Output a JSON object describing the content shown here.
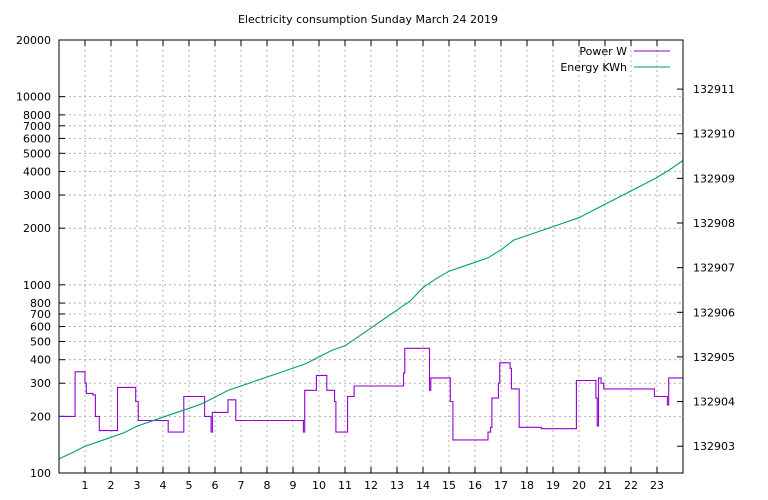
{
  "chart_data": {
    "type": "line",
    "title": "Electricity consumption Sunday March 24 2019",
    "xlabel": "",
    "ylabel": "",
    "x_range": [
      0,
      24
    ],
    "x_ticks": [
      1,
      2,
      3,
      4,
      5,
      6,
      7,
      8,
      9,
      10,
      11,
      12,
      13,
      14,
      15,
      16,
      17,
      18,
      19,
      20,
      21,
      22,
      23
    ],
    "y_scale": "log",
    "y_range": [
      100,
      20000
    ],
    "y_ticks": [
      100,
      200,
      300,
      400,
      500,
      600,
      700,
      800,
      1000,
      2000,
      3000,
      4000,
      5000,
      6000,
      7000,
      8000,
      10000,
      20000
    ],
    "y2_range": [
      132902.4,
      132912.1
    ],
    "y2_ticks": [
      132903,
      132904,
      132905,
      132906,
      132907,
      132908,
      132909,
      132910,
      132911
    ],
    "grid": true,
    "legend_position": "top-right",
    "series": [
      {
        "name": "Power W",
        "axis": "left",
        "color": "#9400d3",
        "step": true,
        "points": [
          [
            0.0,
            200
          ],
          [
            0.55,
            200
          ],
          [
            0.62,
            345
          ],
          [
            0.98,
            345
          ],
          [
            1.0,
            300
          ],
          [
            1.05,
            265
          ],
          [
            1.3,
            260
          ],
          [
            1.4,
            200
          ],
          [
            1.55,
            168
          ],
          [
            2.15,
            168
          ],
          [
            2.25,
            285
          ],
          [
            2.9,
            285
          ],
          [
            2.95,
            240
          ],
          [
            3.05,
            190
          ],
          [
            4.15,
            190
          ],
          [
            4.2,
            165
          ],
          [
            4.75,
            165
          ],
          [
            4.8,
            255
          ],
          [
            5.55,
            255
          ],
          [
            5.6,
            200
          ],
          [
            5.85,
            165
          ],
          [
            5.9,
            210
          ],
          [
            6.4,
            210
          ],
          [
            6.5,
            245
          ],
          [
            6.7,
            245
          ],
          [
            6.8,
            190
          ],
          [
            9.35,
            190
          ],
          [
            9.4,
            165
          ],
          [
            9.45,
            275
          ],
          [
            9.85,
            275
          ],
          [
            9.9,
            330
          ],
          [
            10.2,
            330
          ],
          [
            10.3,
            275
          ],
          [
            10.5,
            275
          ],
          [
            10.6,
            240
          ],
          [
            10.65,
            165
          ],
          [
            11.05,
            165
          ],
          [
            11.1,
            255
          ],
          [
            11.3,
            255
          ],
          [
            11.35,
            290
          ],
          [
            13.2,
            290
          ],
          [
            13.25,
            340
          ],
          [
            13.3,
            460
          ],
          [
            14.2,
            460
          ],
          [
            14.25,
            275
          ],
          [
            14.3,
            320
          ],
          [
            15.0,
            320
          ],
          [
            15.05,
            240
          ],
          [
            15.15,
            150
          ],
          [
            16.45,
            150
          ],
          [
            16.5,
            165
          ],
          [
            16.6,
            175
          ],
          [
            16.65,
            250
          ],
          [
            16.85,
            250
          ],
          [
            16.9,
            300
          ],
          [
            16.95,
            385
          ],
          [
            17.3,
            385
          ],
          [
            17.35,
            360
          ],
          [
            17.4,
            280
          ],
          [
            17.65,
            280
          ],
          [
            17.7,
            175
          ],
          [
            18.5,
            175
          ],
          [
            18.55,
            172
          ],
          [
            19.85,
            172
          ],
          [
            19.9,
            310
          ],
          [
            20.6,
            310
          ],
          [
            20.65,
            250
          ],
          [
            20.7,
            178
          ],
          [
            20.75,
            320
          ],
          [
            20.85,
            300
          ],
          [
            20.95,
            280
          ],
          [
            22.85,
            280
          ],
          [
            22.9,
            255
          ],
          [
            23.35,
            255
          ],
          [
            23.4,
            230
          ],
          [
            23.45,
            320
          ],
          [
            24.0,
            320
          ]
        ]
      },
      {
        "name": "Energy KWh",
        "axis": "right",
        "color": "#009e73",
        "step": false,
        "points": [
          [
            0.0,
            132902.72
          ],
          [
            0.5,
            132902.85
          ],
          [
            1.0,
            132903.0
          ],
          [
            1.5,
            132903.1
          ],
          [
            2.0,
            132903.2
          ],
          [
            2.5,
            132903.3
          ],
          [
            3.0,
            132903.45
          ],
          [
            3.5,
            132903.55
          ],
          [
            4.0,
            132903.65
          ],
          [
            4.5,
            132903.75
          ],
          [
            5.0,
            132903.85
          ],
          [
            5.5,
            132903.95
          ],
          [
            6.0,
            132904.1
          ],
          [
            6.5,
            132904.25
          ],
          [
            7.0,
            132904.35
          ],
          [
            7.5,
            132904.45
          ],
          [
            8.0,
            132904.55
          ],
          [
            8.5,
            132904.65
          ],
          [
            9.0,
            132904.75
          ],
          [
            9.5,
            132904.85
          ],
          [
            10.0,
            132905.0
          ],
          [
            10.5,
            132905.15
          ],
          [
            11.0,
            132905.25
          ],
          [
            11.5,
            132905.45
          ],
          [
            12.0,
            132905.65
          ],
          [
            12.5,
            132905.85
          ],
          [
            13.0,
            132906.05
          ],
          [
            13.5,
            132906.25
          ],
          [
            14.0,
            132906.55
          ],
          [
            14.5,
            132906.75
          ],
          [
            15.0,
            132906.92
          ],
          [
            15.5,
            132907.02
          ],
          [
            16.0,
            132907.12
          ],
          [
            16.5,
            132907.22
          ],
          [
            17.0,
            132907.4
          ],
          [
            17.5,
            132907.62
          ],
          [
            18.0,
            132907.72
          ],
          [
            18.5,
            132907.82
          ],
          [
            19.0,
            132907.92
          ],
          [
            19.5,
            132908.02
          ],
          [
            20.0,
            132908.12
          ],
          [
            20.5,
            132908.27
          ],
          [
            21.0,
            132908.42
          ],
          [
            21.5,
            132908.57
          ],
          [
            22.0,
            132908.72
          ],
          [
            22.5,
            132908.87
          ],
          [
            23.0,
            132909.02
          ],
          [
            23.5,
            132909.2
          ],
          [
            24.0,
            132909.4
          ]
        ]
      }
    ]
  }
}
